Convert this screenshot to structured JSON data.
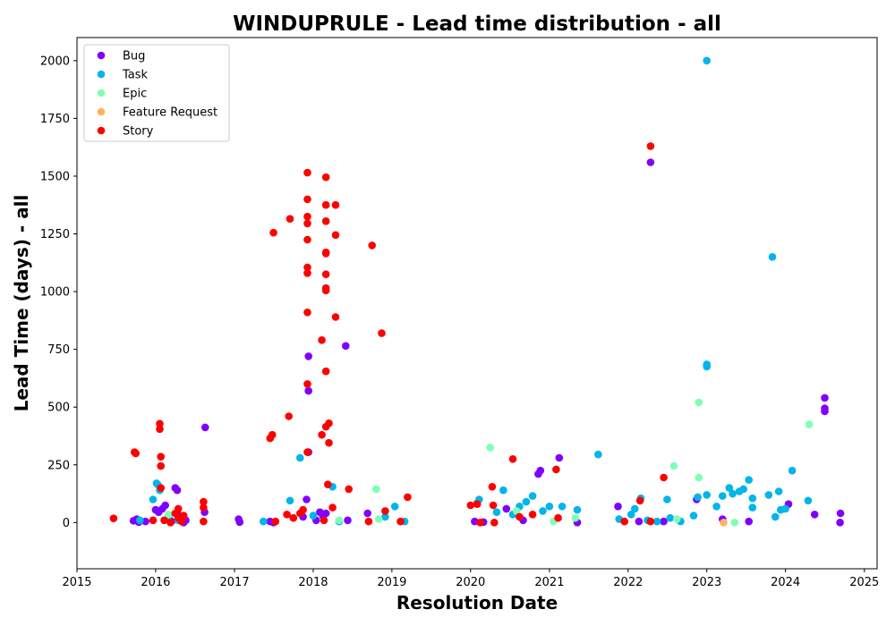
{
  "chart_data": {
    "type": "scatter",
    "title": "WINDUPRULE - Lead time distribution - all",
    "xlabel": "Resolution Date",
    "ylabel": "Lead Time (days) - all",
    "x_type": "date",
    "xlim": [
      "2015-01-01",
      "2025-03-01"
    ],
    "ylim": [
      -200,
      2100
    ],
    "x_ticks": [
      "2015",
      "2016",
      "2017",
      "2018",
      "2019",
      "2020",
      "2021",
      "2022",
      "2023",
      "2024",
      "2025"
    ],
    "y_ticks": [
      0,
      250,
      500,
      750,
      1000,
      1250,
      1500,
      1750,
      2000
    ],
    "grid": false,
    "legend_position": "top-left",
    "series": [
      {
        "name": "Bug",
        "color": "#8000ff",
        "points": [
          [
            "2015-09-20",
            8
          ],
          [
            "2015-10-05",
            15
          ],
          [
            "2015-10-15",
            2
          ],
          [
            "2015-11-15",
            5
          ],
          [
            "2016-01-01",
            55
          ],
          [
            "2016-01-15",
            45
          ],
          [
            "2016-02-01",
            60
          ],
          [
            "2016-02-15",
            75
          ],
          [
            "2016-03-01",
            20
          ],
          [
            "2016-03-15",
            5
          ],
          [
            "2016-04-01",
            150
          ],
          [
            "2016-04-10",
            140
          ],
          [
            "2016-04-20",
            30
          ],
          [
            "2016-05-10",
            0
          ],
          [
            "2016-05-20",
            10
          ],
          [
            "2016-08-15",
            45
          ],
          [
            "2016-08-18",
            412
          ],
          [
            "2017-01-20",
            15
          ],
          [
            "2017-01-25",
            2
          ],
          [
            "2017-06-15",
            5
          ],
          [
            "2017-07-01",
            0
          ],
          [
            "2017-11-15",
            25
          ],
          [
            "2017-12-01",
            100
          ],
          [
            "2017-12-10",
            720
          ],
          [
            "2017-12-10",
            570
          ],
          [
            "2017-12-10",
            305
          ],
          [
            "2018-01-15",
            10
          ],
          [
            "2018-02-01",
            45
          ],
          [
            "2018-02-15",
            30
          ],
          [
            "2018-03-01",
            40
          ],
          [
            "2018-06-01",
            765
          ],
          [
            "2018-06-10",
            10
          ],
          [
            "2018-09-10",
            40
          ],
          [
            "2020-01-20",
            5
          ],
          [
            "2020-03-01",
            2
          ],
          [
            "2020-06-15",
            60
          ],
          [
            "2020-09-01",
            10
          ],
          [
            "2020-11-10",
            210
          ],
          [
            "2020-11-20",
            225
          ],
          [
            "2021-02-15",
            280
          ],
          [
            "2021-05-10",
            0
          ],
          [
            "2021-11-15",
            70
          ],
          [
            "2022-02-20",
            5
          ],
          [
            "2022-04-15",
            1560
          ],
          [
            "2022-06-15",
            5
          ],
          [
            "2022-11-15",
            100
          ],
          [
            "2023-03-15",
            15
          ],
          [
            "2023-07-15",
            5
          ],
          [
            "2024-01-15",
            80
          ],
          [
            "2024-05-15",
            35
          ],
          [
            "2024-07-01",
            540
          ],
          [
            "2024-07-01",
            495
          ],
          [
            "2024-07-01",
            482
          ],
          [
            "2024-09-10",
            0
          ],
          [
            "2024-09-12",
            40
          ]
        ]
      },
      {
        "name": "Task",
        "color": "#00b5eb",
        "points": [
          [
            "2015-10-20",
            10
          ],
          [
            "2015-12-20",
            100
          ],
          [
            "2016-01-05",
            170
          ],
          [
            "2016-01-10",
            165
          ],
          [
            "2016-01-20",
            140
          ],
          [
            "2016-03-01",
            30
          ],
          [
            "2016-04-15",
            10
          ],
          [
            "2017-05-15",
            5
          ],
          [
            "2017-09-15",
            95
          ],
          [
            "2017-11-01",
            280
          ],
          [
            "2018-01-01",
            30
          ],
          [
            "2018-04-01",
            155
          ],
          [
            "2018-05-01",
            5
          ],
          [
            "2018-12-01",
            25
          ],
          [
            "2019-01-15",
            70
          ],
          [
            "2019-03-01",
            5
          ],
          [
            "2020-02-01",
            85
          ],
          [
            "2020-02-10",
            100
          ],
          [
            "2020-05-01",
            45
          ],
          [
            "2020-06-01",
            140
          ],
          [
            "2020-07-15",
            35
          ],
          [
            "2020-08-15",
            70
          ],
          [
            "2020-09-15",
            90
          ],
          [
            "2020-10-15",
            115
          ],
          [
            "2020-12-01",
            50
          ],
          [
            "2021-01-01",
            70
          ],
          [
            "2021-03-01",
            70
          ],
          [
            "2021-05-10",
            55
          ],
          [
            "2021-08-15",
            295
          ],
          [
            "2021-11-20",
            15
          ],
          [
            "2022-01-15",
            35
          ],
          [
            "2022-02-01",
            60
          ],
          [
            "2022-03-01",
            105
          ],
          [
            "2022-04-01",
            10
          ],
          [
            "2022-05-15",
            5
          ],
          [
            "2022-07-01",
            100
          ],
          [
            "2022-07-15",
            20
          ],
          [
            "2022-09-01",
            5
          ],
          [
            "2022-11-01",
            30
          ],
          [
            "2022-11-20",
            110
          ],
          [
            "2023-01-01",
            2000
          ],
          [
            "2023-01-01",
            685
          ],
          [
            "2023-01-01",
            675
          ],
          [
            "2023-01-01",
            120
          ],
          [
            "2023-02-15",
            70
          ],
          [
            "2023-03-15",
            115
          ],
          [
            "2023-04-15",
            150
          ],
          [
            "2023-05-01",
            125
          ],
          [
            "2023-06-01",
            135
          ],
          [
            "2023-06-20",
            145
          ],
          [
            "2023-07-15",
            185
          ],
          [
            "2023-08-01",
            105
          ],
          [
            "2023-08-01",
            65
          ],
          [
            "2023-10-15",
            120
          ],
          [
            "2023-11-01",
            1150
          ],
          [
            "2023-11-15",
            25
          ],
          [
            "2023-12-01",
            135
          ],
          [
            "2023-12-10",
            55
          ],
          [
            "2024-01-01",
            60
          ],
          [
            "2024-02-01",
            225
          ],
          [
            "2024-04-15",
            95
          ]
        ]
      },
      {
        "name": "Epic",
        "color": "#80ffb4",
        "points": [
          [
            "2016-03-01",
            35
          ],
          [
            "2018-05-01",
            10
          ],
          [
            "2018-10-20",
            145
          ],
          [
            "2018-11-01",
            15
          ],
          [
            "2020-04-01",
            325
          ],
          [
            "2020-08-01",
            50
          ],
          [
            "2021-01-20",
            5
          ],
          [
            "2021-05-01",
            20
          ],
          [
            "2022-08-01",
            245
          ],
          [
            "2022-08-15",
            15
          ],
          [
            "2022-11-25",
            520
          ],
          [
            "2022-11-25",
            195
          ],
          [
            "2023-05-10",
            0
          ],
          [
            "2024-04-20",
            425
          ]
        ]
      },
      {
        "name": "Feature Request",
        "color": "#ffb360",
        "points": [
          [
            "2023-03-20",
            0
          ]
        ]
      },
      {
        "name": "Story",
        "color": "#ff0000",
        "points": [
          [
            "2015-06-20",
            18
          ],
          [
            "2015-09-25",
            305
          ],
          [
            "2015-10-01",
            300
          ],
          [
            "2015-12-20",
            10
          ],
          [
            "2016-01-20",
            428
          ],
          [
            "2016-01-20",
            405
          ],
          [
            "2016-01-25",
            285
          ],
          [
            "2016-01-25",
            245
          ],
          [
            "2016-01-25",
            150
          ],
          [
            "2016-02-10",
            10
          ],
          [
            "2016-03-10",
            0
          ],
          [
            "2016-04-01",
            40
          ],
          [
            "2016-04-15",
            60
          ],
          [
            "2016-04-15",
            20
          ],
          [
            "2016-05-01",
            5
          ],
          [
            "2016-05-10",
            30
          ],
          [
            "2016-08-10",
            90
          ],
          [
            "2016-08-10",
            65
          ],
          [
            "2016-08-10",
            5
          ],
          [
            "2017-06-15",
            365
          ],
          [
            "2017-06-25",
            380
          ],
          [
            "2017-07-01",
            1255
          ],
          [
            "2017-07-10",
            5
          ],
          [
            "2017-09-01",
            35
          ],
          [
            "2017-09-10",
            460
          ],
          [
            "2017-09-15",
            1315
          ],
          [
            "2017-10-01",
            20
          ],
          [
            "2017-11-01",
            40
          ],
          [
            "2017-11-15",
            55
          ],
          [
            "2017-12-05",
            1515
          ],
          [
            "2017-12-05",
            1400
          ],
          [
            "2017-12-05",
            1325
          ],
          [
            "2017-12-05",
            1295
          ],
          [
            "2017-12-05",
            1225
          ],
          [
            "2017-12-05",
            1105
          ],
          [
            "2017-12-05",
            1080
          ],
          [
            "2017-12-05",
            910
          ],
          [
            "2017-12-05",
            600
          ],
          [
            "2017-12-05",
            305
          ],
          [
            "2018-02-10",
            790
          ],
          [
            "2018-02-10",
            380
          ],
          [
            "2018-02-20",
            10
          ],
          [
            "2018-03-01",
            1495
          ],
          [
            "2018-03-01",
            1375
          ],
          [
            "2018-03-01",
            1305
          ],
          [
            "2018-03-01",
            1170
          ],
          [
            "2018-03-01",
            1165
          ],
          [
            "2018-03-01",
            1075
          ],
          [
            "2018-03-01",
            1015
          ],
          [
            "2018-03-01",
            1005
          ],
          [
            "2018-03-01",
            655
          ],
          [
            "2018-03-01",
            415
          ],
          [
            "2018-03-10",
            165
          ],
          [
            "2018-03-15",
            430
          ],
          [
            "2018-03-15",
            345
          ],
          [
            "2018-04-01",
            65
          ],
          [
            "2018-04-15",
            1375
          ],
          [
            "2018-04-15",
            1245
          ],
          [
            "2018-04-15",
            890
          ],
          [
            "2018-06-15",
            145
          ],
          [
            "2018-09-15",
            5
          ],
          [
            "2018-10-01",
            1200
          ],
          [
            "2018-11-15",
            820
          ],
          [
            "2018-12-01",
            50
          ],
          [
            "2019-02-10",
            5
          ],
          [
            "2019-03-15",
            110
          ],
          [
            "2020-01-01",
            75
          ],
          [
            "2020-02-01",
            80
          ],
          [
            "2020-02-15",
            0
          ],
          [
            "2020-04-10",
            155
          ],
          [
            "2020-04-15",
            75
          ],
          [
            "2020-04-20",
            0
          ],
          [
            "2020-07-15",
            275
          ],
          [
            "2020-08-15",
            25
          ],
          [
            "2020-10-15",
            35
          ],
          [
            "2021-02-01",
            230
          ],
          [
            "2021-02-10",
            20
          ],
          [
            "2021-12-15",
            5
          ],
          [
            "2022-02-25",
            95
          ],
          [
            "2022-04-15",
            1630
          ],
          [
            "2022-04-15",
            5
          ],
          [
            "2022-06-15",
            195
          ]
        ]
      }
    ]
  }
}
